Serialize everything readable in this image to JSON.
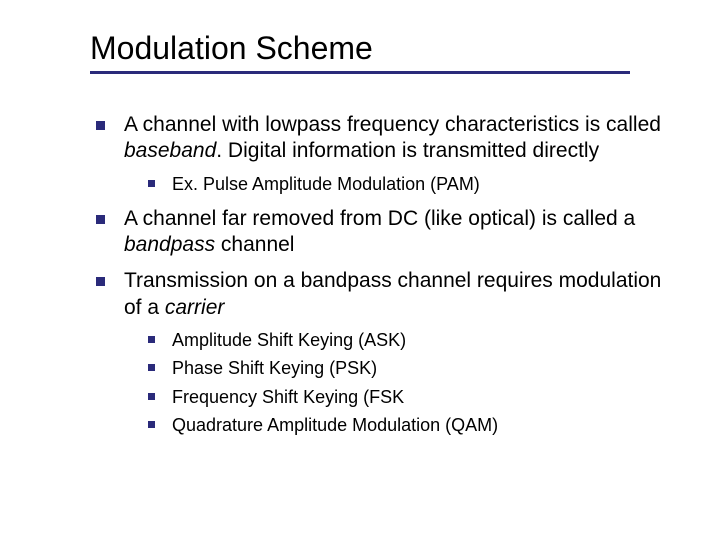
{
  "title": "Modulation Scheme",
  "colors": {
    "bullet": "#2a2a7a",
    "underline": "#2a2a7a",
    "text": "#000000",
    "background": "#ffffff"
  },
  "typography": {
    "title_fontsize": 32,
    "lvl1_fontsize": 21,
    "lvl2_fontsize": 18,
    "font_family": "Arial"
  },
  "b1_pre": "A channel with lowpass frequency characteristics is called ",
  "b1_it": "baseband",
  "b1_post": ".  Digital information is transmitted directly",
  "b1_sub1": "Ex. Pulse Amplitude Modulation (PAM)",
  "b2_pre": "A channel far removed from DC (like optical) is called a ",
  "b2_it": "bandpass",
  "b2_post": " channel",
  "b3_pre": "Transmission on a bandpass channel requires modulation of a ",
  "b3_it": "carrier",
  "b3_sub1": "Amplitude Shift Keying (ASK)",
  "b3_sub2": "Phase Shift Keying (PSK)",
  "b3_sub3": "Frequency Shift Keying (FSK",
  "b3_sub4": "Quadrature Amplitude Modulation (QAM)"
}
